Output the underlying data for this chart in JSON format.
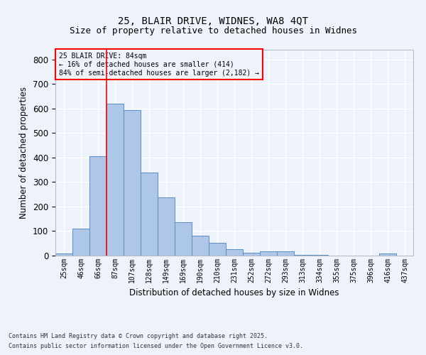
{
  "title1": "25, BLAIR DRIVE, WIDNES, WA8 4QT",
  "title2": "Size of property relative to detached houses in Widnes",
  "xlabel": "Distribution of detached houses by size in Widnes",
  "ylabel": "Number of detached properties",
  "categories": [
    "25sqm",
    "46sqm",
    "66sqm",
    "87sqm",
    "107sqm",
    "128sqm",
    "149sqm",
    "169sqm",
    "190sqm",
    "210sqm",
    "231sqm",
    "252sqm",
    "272sqm",
    "293sqm",
    "313sqm",
    "334sqm",
    "355sqm",
    "375sqm",
    "396sqm",
    "416sqm",
    "437sqm"
  ],
  "values": [
    8,
    110,
    405,
    620,
    595,
    338,
    238,
    135,
    80,
    52,
    25,
    13,
    17,
    17,
    4,
    2,
    0,
    0,
    0,
    8,
    0
  ],
  "bar_color": "#aec6e8",
  "bar_edge_color": "#5b8ec4",
  "red_line_index": 3,
  "annotation_lines": [
    "25 BLAIR DRIVE: 84sqm",
    "← 16% of detached houses are smaller (414)",
    "84% of semi-detached houses are larger (2,182) →"
  ],
  "ylim": [
    0,
    840
  ],
  "yticks": [
    0,
    100,
    200,
    300,
    400,
    500,
    600,
    700,
    800
  ],
  "bg_color": "#eef3fb",
  "grid_color": "#ffffff",
  "footer1": "Contains HM Land Registry data © Crown copyright and database right 2025.",
  "footer2": "Contains public sector information licensed under the Open Government Licence v3.0."
}
